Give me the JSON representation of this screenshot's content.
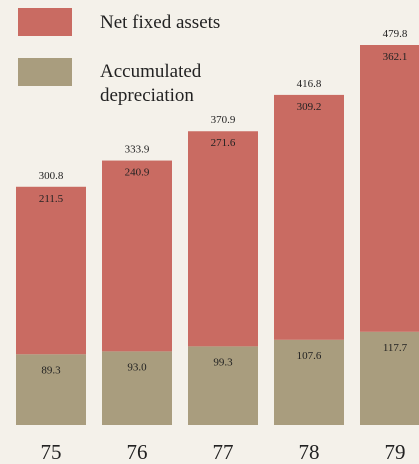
{
  "chart_data": {
    "type": "stacked_bar",
    "categories": [
      "75",
      "76",
      "77",
      "78",
      "79"
    ],
    "series": [
      {
        "name": "Accumulated depreciation",
        "color": "#a99d7e",
        "values": [
          89.3,
          93.0,
          99.3,
          107.6,
          117.7
        ],
        "value_labels": [
          "89.3",
          "93.0",
          "99.3",
          "107.6",
          "117.7"
        ]
      },
      {
        "name": "Net fixed assets",
        "color": "#c96b62",
        "values": [
          211.5,
          240.9,
          271.6,
          309.2,
          362.1
        ]
      }
    ],
    "totals": [
      300.8,
      333.9,
      370.9,
      416.8,
      479.8
    ]
  }
}
